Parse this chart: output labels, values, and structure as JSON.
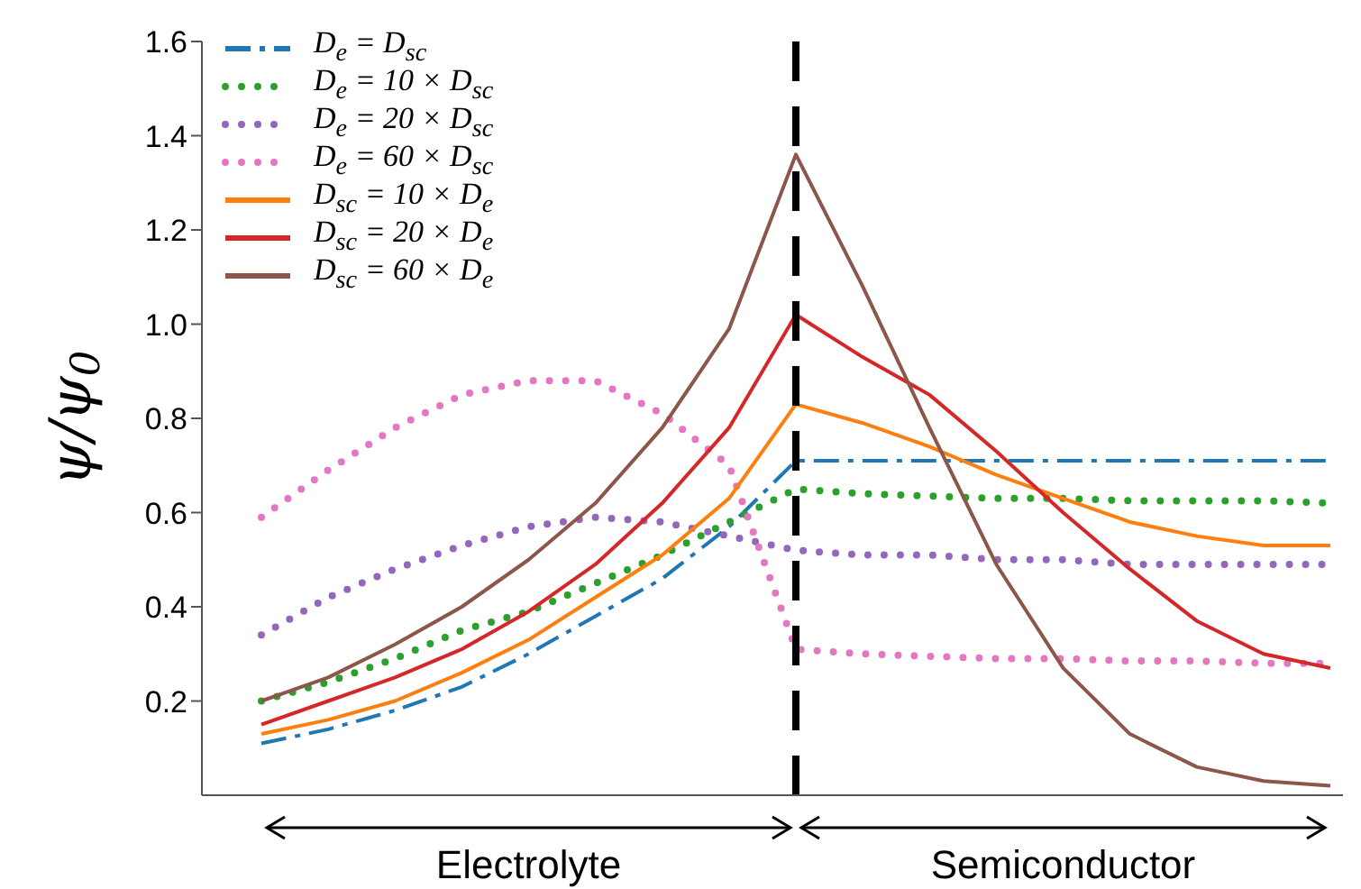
{
  "chart_data": {
    "type": "line",
    "ylabel": "ψ/ψ$_{0}$",
    "categories": [
      null,
      null,
      null,
      null,
      null,
      null,
      null,
      null,
      null,
      null,
      null,
      null,
      null,
      null,
      null,
      null,
      null
    ],
    "ylim": [
      0,
      1.6
    ],
    "yticks": [
      0.2,
      0.4,
      0.6,
      0.8,
      {
        "value": 1,
        "label": "1.0"
      },
      1.2,
      1.4,
      1.6
    ],
    "legend": "top left",
    "marker": "none",
    "annotations": [
      "Electrolyte",
      "Semiconductor"
    ],
    "series": [
      {
        "name": "D$_{e}$ = D$_{sc}$",
        "color": "#1f77b4",
        "line_style": "dashed",
        "values": [
          0.11,
          0.14,
          0.18,
          0.23,
          0.3,
          0.38,
          0.46,
          0.57,
          0.71,
          0.71,
          0.71,
          0.71,
          0.71,
          0.71,
          0.71,
          0.71,
          0.71
        ]
      },
      {
        "name": "D$_{e}$ = 10 × D$_{sc}$",
        "color": "#2ca02c",
        "line_style": "dotted",
        "values": [
          0.2,
          0.24,
          0.29,
          0.35,
          0.39,
          0.45,
          0.51,
          0.58,
          0.65,
          0.64,
          0.635,
          0.63,
          0.63,
          0.625,
          0.625,
          0.625,
          0.62
        ]
      },
      {
        "name": "D$_{e}$ = 20 × D$_{sc}$",
        "color": "#9467bd",
        "line_style": "dotted",
        "values": [
          0.34,
          0.42,
          0.48,
          0.53,
          0.57,
          0.59,
          0.58,
          0.55,
          0.52,
          0.51,
          0.51,
          0.5,
          0.5,
          0.49,
          0.49,
          0.49,
          0.49
        ]
      },
      {
        "name": "D$_{e}$ = 60 × D$_{sc}$",
        "color": "#e377c2",
        "line_style": "dotted",
        "values": [
          0.59,
          0.69,
          0.78,
          0.85,
          0.88,
          0.88,
          0.81,
          0.7,
          0.31,
          0.3,
          0.295,
          0.29,
          0.29,
          0.285,
          0.285,
          0.28,
          0.28
        ]
      },
      {
        "name": "D$_{sc}$ = 10 × D$_{e}$",
        "color": "#ff7f0e",
        "line_style": "solid",
        "values": [
          0.13,
          0.16,
          0.2,
          0.26,
          0.33,
          0.42,
          0.51,
          0.63,
          0.83,
          0.79,
          0.74,
          0.68,
          0.63,
          0.58,
          0.55,
          0.53,
          0.53
        ]
      },
      {
        "name": "D$_{sc}$ = 20 × D$_{e}$",
        "color": "#d62728",
        "line_style": "solid",
        "values": [
          0.15,
          0.2,
          0.25,
          0.31,
          0.39,
          0.49,
          0.62,
          0.78,
          1.02,
          0.93,
          0.85,
          0.73,
          0.6,
          0.48,
          0.37,
          0.3,
          0.27
        ]
      },
      {
        "name": "D$_{sc}$ = 60 × D$_{e}$",
        "color": "#8c564b",
        "line_style": "solid",
        "values": [
          0.2,
          0.25,
          0.32,
          0.4,
          0.5,
          0.62,
          0.78,
          0.99,
          1.36,
          1.08,
          0.78,
          0.49,
          0.27,
          0.13,
          0.06,
          0.03,
          0.02
        ]
      }
    ]
  }
}
